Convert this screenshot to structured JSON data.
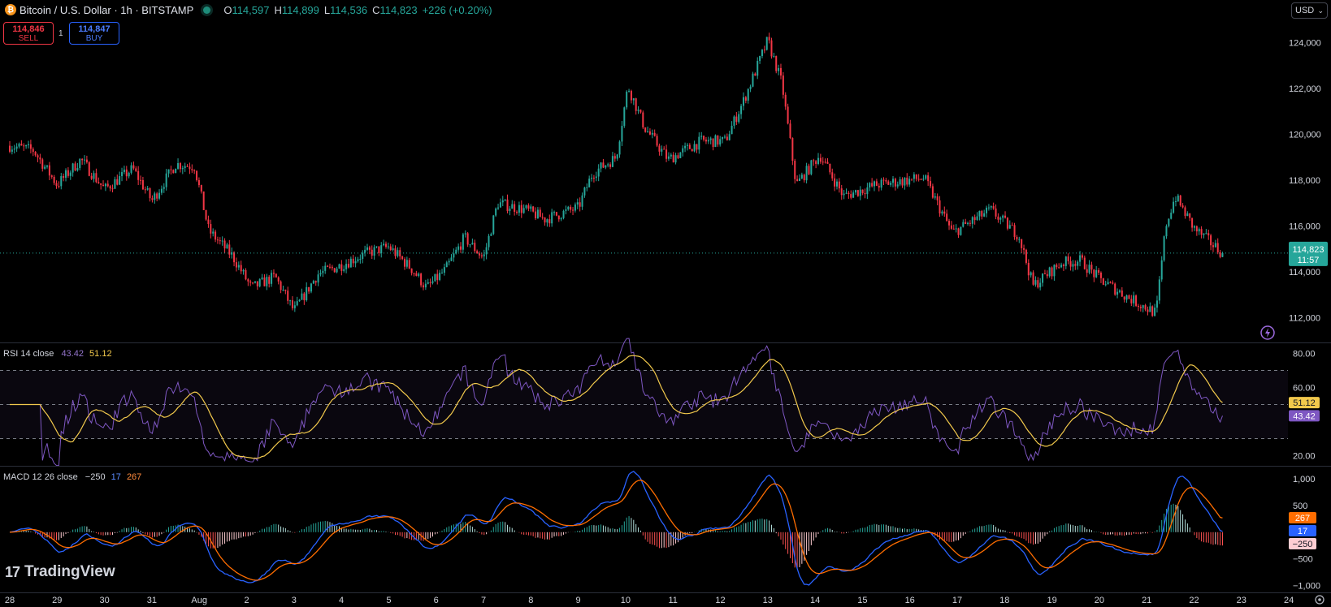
{
  "header": {
    "symbol_icon": "bitcoin-icon",
    "title": "Bitcoin / U.S. Dollar · 1h · BITSTAMP",
    "ohlc": [
      {
        "k": "O",
        "v": "114,597"
      },
      {
        "k": "H",
        "v": "114,899"
      },
      {
        "k": "L",
        "v": "114,536"
      },
      {
        "k": "C",
        "v": "114,823"
      }
    ],
    "change": "+226 (+0.20%)"
  },
  "trade": {
    "sell_price": "114,846",
    "sell_label": "SELL",
    "spread": "1",
    "buy_price": "114,847",
    "buy_label": "BUY"
  },
  "currency": {
    "value": "USD",
    "icon": "chevron-down-icon"
  },
  "brand": {
    "name": "TradingView",
    "mark": "17"
  },
  "colors": {
    "up": "#26a69a",
    "down": "#f23645",
    "rsi": "#7e57c2",
    "rsi_ma": "#f2c94c",
    "macd": "#2962ff",
    "signal": "#ff6d00"
  },
  "chart_data": [
    {
      "type": "candlestick",
      "title": "Bitcoin / U.S. Dollar · 1h · BITSTAMP",
      "ylim": [
        111000,
        125000
      ],
      "y_ticks": [
        "112,000",
        "114,000",
        "116,000",
        "118,000",
        "120,000",
        "122,000",
        "124,000"
      ],
      "x_ticks": [
        "28",
        "29",
        "30",
        "31",
        "Aug",
        "2",
        "3",
        "4",
        "5",
        "6",
        "7",
        "8",
        "9",
        "10",
        "11",
        "12",
        "13",
        "14",
        "15",
        "16",
        "17",
        "18",
        "19",
        "20",
        "21",
        "22",
        "23",
        "24"
      ],
      "price_path": [
        [
          28,
          119500
        ],
        [
          28.5,
          119300
        ],
        [
          29,
          117800
        ],
        [
          29.5,
          118900
        ],
        [
          30,
          117600
        ],
        [
          30.6,
          118500
        ],
        [
          31,
          117100
        ],
        [
          31.5,
          118700
        ],
        [
          31.9,
          118600
        ],
        [
          32.2,
          115800
        ],
        [
          32.7,
          114700
        ],
        [
          33.1,
          113300
        ],
        [
          33.6,
          113800
        ],
        [
          34.0,
          112300
        ],
        [
          34.5,
          113900
        ],
        [
          35,
          114300
        ],
        [
          35.5,
          114800
        ],
        [
          36,
          115100
        ],
        [
          36.5,
          114100
        ],
        [
          36.8,
          113300
        ],
        [
          37.2,
          114100
        ],
        [
          37.6,
          115500
        ],
        [
          38,
          114600
        ],
        [
          38.3,
          117000
        ],
        [
          38.9,
          116700
        ],
        [
          39.3,
          116300
        ],
        [
          40,
          116800
        ],
        [
          40.3,
          118300
        ],
        [
          40.8,
          119000
        ],
        [
          41.05,
          122100
        ],
        [
          41.4,
          120300
        ],
        [
          41.9,
          118900
        ],
        [
          42.6,
          119700
        ],
        [
          43.1,
          119700
        ],
        [
          43.5,
          121500
        ],
        [
          44.0,
          124100
        ],
        [
          44.3,
          122200
        ],
        [
          44.6,
          117800
        ],
        [
          45.1,
          119100
        ],
        [
          45.6,
          117300
        ],
        [
          46.3,
          117800
        ],
        [
          47.3,
          118100
        ],
        [
          47.9,
          115700
        ],
        [
          48.7,
          116700
        ],
        [
          49.3,
          115600
        ],
        [
          49.6,
          113400
        ],
        [
          50.2,
          114400
        ],
        [
          50.6,
          114500
        ],
        [
          51.0,
          113700
        ],
        [
          51.6,
          112900
        ],
        [
          52.2,
          112200
        ],
        [
          52.4,
          116000
        ],
        [
          52.6,
          117300
        ],
        [
          53.0,
          115900
        ],
        [
          53.6,
          114823
        ]
      ],
      "last_price": "114,823",
      "countdown": "11:57"
    },
    {
      "type": "line",
      "title": "RSI 14 close",
      "legend": [
        "43.42",
        "51.12"
      ],
      "series": [
        {
          "name": "RSI",
          "color": "#7e57c2"
        },
        {
          "name": "RSI MA",
          "color": "#f2c94c"
        }
      ],
      "last_values": [
        43.42,
        51.12
      ],
      "ylim": [
        15,
        85
      ],
      "y_ticks": [
        "20.00",
        "60.00",
        "80.00"
      ],
      "bands": [
        30,
        50,
        70
      ]
    },
    {
      "type": "line",
      "title": "MACD 12 26 close",
      "legend": [
        "−250",
        "17",
        "267"
      ],
      "series": [
        {
          "name": "Histogram",
          "color": "#ef9a9a"
        },
        {
          "name": "MACD",
          "color": "#2962ff"
        },
        {
          "name": "Signal",
          "color": "#ff6d00"
        }
      ],
      "last_values": [
        -250,
        17,
        267
      ],
      "labels": [
        "267",
        "17",
        "−250"
      ],
      "ylim": [
        -1100,
        1200
      ],
      "y_ticks": [
        "1,000",
        "500",
        "−500",
        "−1,000"
      ]
    }
  ]
}
